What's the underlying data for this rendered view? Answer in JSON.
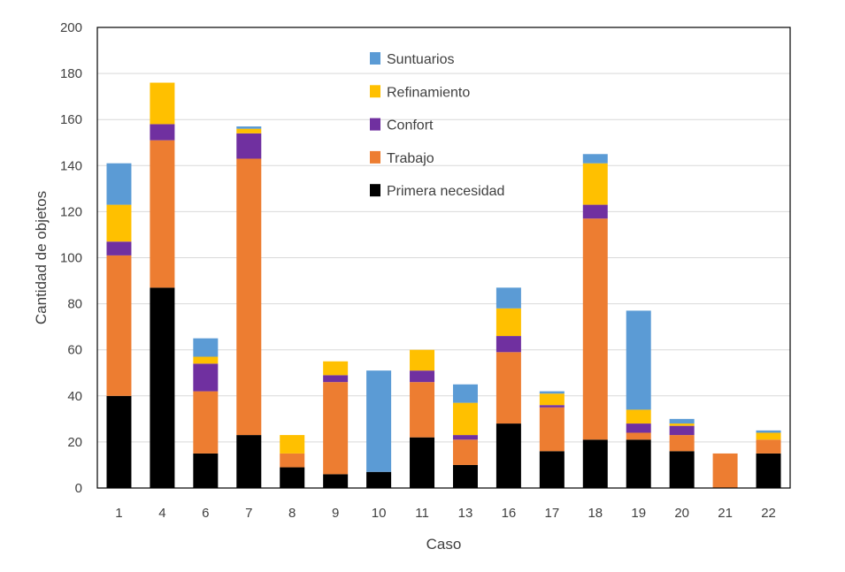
{
  "chart_data": {
    "type": "bar",
    "stacked": true,
    "title": "",
    "xlabel": "Caso",
    "ylabel": "Cantidad de objetos",
    "ylim": [
      0,
      200
    ],
    "yticks": [
      0,
      20,
      40,
      60,
      80,
      100,
      120,
      140,
      160,
      180,
      200
    ],
    "grid": true,
    "legend_position": "top-center",
    "categories": [
      "1",
      "4",
      "6",
      "7",
      "8",
      "9",
      "10",
      "11",
      "13",
      "16",
      "17",
      "18",
      "19",
      "20",
      "21",
      "22"
    ],
    "series": [
      {
        "name": "Primera necesidad",
        "color": "#000000",
        "values": [
          40,
          87,
          15,
          23,
          9,
          6,
          7,
          22,
          10,
          28,
          16,
          21,
          21,
          16,
          0,
          15
        ]
      },
      {
        "name": "Trabajo",
        "color": "#ED7D31",
        "values": [
          61,
          64,
          27,
          120,
          6,
          40,
          0,
          24,
          11,
          31,
          19,
          96,
          3,
          7,
          15,
          6
        ]
      },
      {
        "name": "Confort",
        "color": "#7030A0",
        "values": [
          6,
          7,
          12,
          11,
          0,
          3,
          0,
          5,
          2,
          7,
          1,
          6,
          4,
          4,
          0,
          0
        ]
      },
      {
        "name": "Refinamiento",
        "color": "#FFC000",
        "values": [
          16,
          18,
          3,
          2,
          8,
          6,
          0,
          9,
          14,
          12,
          5,
          18,
          6,
          1,
          0,
          3
        ]
      },
      {
        "name": "Suntuarios",
        "color": "#5B9BD5",
        "values": [
          18,
          0,
          8,
          1,
          0,
          0,
          44,
          0,
          8,
          9,
          1,
          4,
          43,
          2,
          0,
          1
        ]
      }
    ],
    "legend_order": [
      "Suntuarios",
      "Refinamiento",
      "Confort",
      "Trabajo",
      "Primera necesidad"
    ]
  }
}
